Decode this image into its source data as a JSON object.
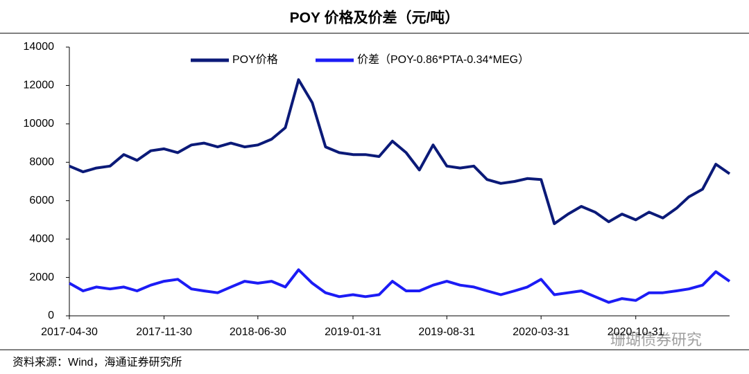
{
  "chart_data": {
    "type": "line",
    "title": "POY 价格及价差（元/吨）",
    "source": "资料来源：Wind，海通证券研究所",
    "watermark": "珊瑚债券研究",
    "x": [
      "2017-04-30",
      "2017-05-31",
      "2017-06-30",
      "2017-07-31",
      "2017-08-31",
      "2017-09-30",
      "2017-10-31",
      "2017-11-30",
      "2017-12-31",
      "2018-01-31",
      "2018-02-28",
      "2018-03-31",
      "2018-04-30",
      "2018-05-31",
      "2018-06-30",
      "2018-07-31",
      "2018-08-31",
      "2018-09-30",
      "2018-10-31",
      "2018-11-30",
      "2018-12-31",
      "2019-01-31",
      "2019-02-28",
      "2019-03-31",
      "2019-04-30",
      "2019-05-31",
      "2019-06-30",
      "2019-07-31",
      "2019-08-31",
      "2019-09-30",
      "2019-10-31",
      "2019-11-30",
      "2019-12-31",
      "2020-01-31",
      "2020-02-29",
      "2020-03-31",
      "2020-04-30",
      "2020-05-31",
      "2020-06-30",
      "2020-07-31",
      "2020-08-31",
      "2020-09-30",
      "2020-10-31",
      "2020-11-30",
      "2020-12-31",
      "2021-01-31",
      "2021-02-28",
      "2021-03-31",
      "2021-04-30",
      "2021-05-31"
    ],
    "series": [
      {
        "name": "POY价格",
        "color": "#0b1a78",
        "values": [
          7800,
          7500,
          7700,
          7800,
          8400,
          8100,
          8600,
          8700,
          8500,
          8900,
          9000,
          8800,
          9000,
          8800,
          8900,
          9200,
          9800,
          12300,
          11100,
          8800,
          8500,
          8400,
          8400,
          8300,
          9100,
          8500,
          7600,
          8900,
          7800,
          7700,
          7800,
          7100,
          6900,
          7000,
          7150,
          7100,
          4800,
          5300,
          5700,
          5400,
          4900,
          5300,
          5000,
          5400,
          5100,
          5600,
          6200,
          6600,
          7900,
          7400
        ]
      },
      {
        "name": "价差（POY-0.86*PTA-0.34*MEG）",
        "color": "#1c1cf5",
        "values": [
          1700,
          1300,
          1500,
          1400,
          1500,
          1300,
          1600,
          1800,
          1900,
          1400,
          1300,
          1200,
          1500,
          1800,
          1700,
          1800,
          1500,
          2400,
          1700,
          1200,
          1000,
          1100,
          1000,
          1100,
          1800,
          1300,
          1300,
          1600,
          1800,
          1600,
          1500,
          1300,
          1100,
          1300,
          1500,
          1900,
          1100,
          1200,
          1300,
          1000,
          700,
          900,
          800,
          1200,
          1200,
          1300,
          1400,
          1600,
          2300,
          1800
        ]
      }
    ],
    "xlim": [
      "2017-04-30",
      "2021-05-31"
    ],
    "xticks": [
      "2017-04-30",
      "2017-11-30",
      "2018-06-30",
      "2019-01-31",
      "2019-08-31",
      "2020-03-31",
      "2020-10-31"
    ],
    "ylim": [
      0,
      14000
    ],
    "yticks": [
      0,
      2000,
      4000,
      6000,
      8000,
      10000,
      12000,
      14000
    ],
    "legend": "top"
  }
}
